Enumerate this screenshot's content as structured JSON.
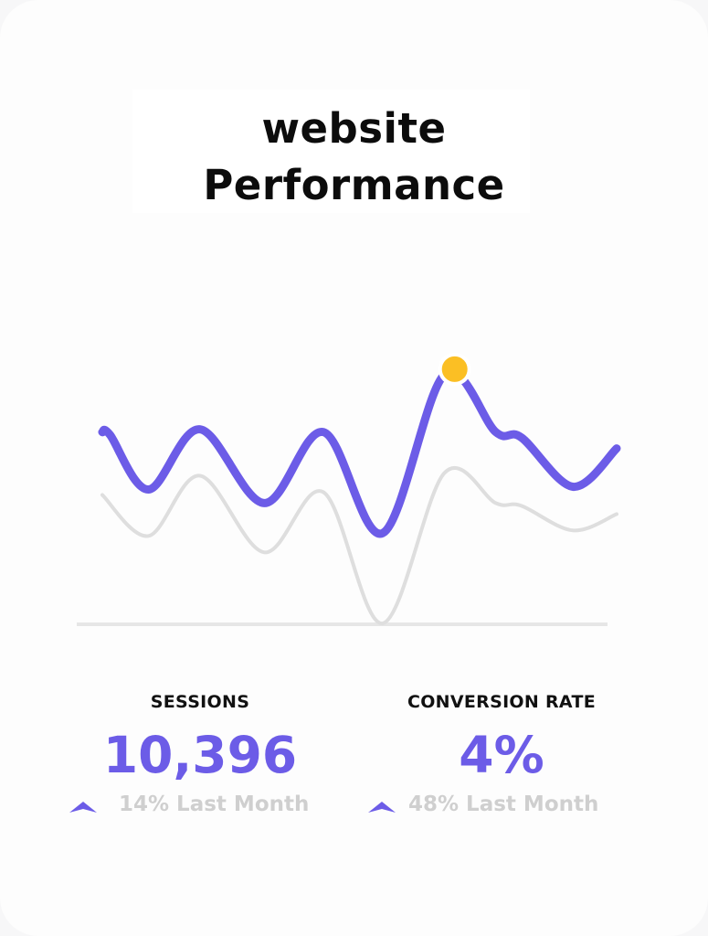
{
  "title_line1": "website",
  "title_line2": "Performance",
  "colors": {
    "accent": "#6c5ce7",
    "secondary_line": "#dedede",
    "highlight": "#fbbf24",
    "baseline": "#e6e6e6",
    "muted_text": "#cfcfcf"
  },
  "stats": [
    {
      "label": "SESSIONS",
      "value": "10,396",
      "change": "14% Last Month",
      "trend_icon": "arrow-up-icon"
    },
    {
      "label": "CONVERSION RATE",
      "value": "4%",
      "change": "48% Last Month",
      "trend_icon": "arrow-up-icon"
    }
  ],
  "chart_data": {
    "type": "line",
    "xlim": [
      0,
      20
    ],
    "ylim": [
      0,
      100
    ],
    "grid": false,
    "axis_labels_shown": false,
    "series": [
      {
        "values": [
          [
            0,
            70
          ],
          [
            0.3,
            69
          ],
          [
            1.8,
            49
          ],
          [
            3.8,
            71
          ],
          [
            6.3,
            44
          ],
          [
            8.6,
            70
          ],
          [
            10.9,
            33
          ],
          [
            13.3,
            91
          ],
          [
            15.3,
            70
          ],
          [
            16.3,
            68
          ],
          [
            18.3,
            50
          ],
          [
            20,
            64
          ]
        ]
      },
      {
        "values": [
          [
            0,
            47
          ],
          [
            1.8,
            32
          ],
          [
            3.8,
            54
          ],
          [
            6.3,
            26
          ],
          [
            8.6,
            48
          ],
          [
            10.9,
            0
          ],
          [
            13.3,
            55
          ],
          [
            15.3,
            44
          ],
          [
            16.3,
            43
          ],
          [
            18.3,
            34
          ],
          [
            20,
            40
          ]
        ]
      }
    ],
    "highlight_point": {
      "x": 13.7,
      "y": 93
    }
  }
}
